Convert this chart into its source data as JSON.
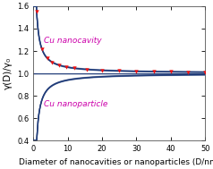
{
  "xlabel": "Diameter of nanocavities or nanoparticles (D/nm)",
  "ylabel": "γ(D)/γ₀",
  "xlim": [
    0,
    50
  ],
  "ylim": [
    0.4,
    1.6
  ],
  "yticks": [
    0.4,
    0.6,
    0.8,
    1.0,
    1.2,
    1.4,
    1.6
  ],
  "xticks": [
    0,
    10,
    20,
    30,
    40,
    50
  ],
  "line_color": "#1e3a78",
  "marker_color": "#ee1111",
  "label_nanocavity": "Cu nanocavity",
  "label_nanoparticle": "Cu nanoparticle",
  "label_color": "#cc00aa",
  "background_color": "#ffffff",
  "nanocavity_marker_x": [
    1.0,
    2.5,
    4.0,
    5.5,
    7.5,
    9.5,
    12.0,
    15.5,
    20.0,
    25.0,
    30.0,
    35.0,
    40.0,
    45.0,
    50.0
  ],
  "a_nanocavity": 0.55,
  "a_nanoparticle": 0.6,
  "font_size_label": 6.5,
  "font_size_tick": 6,
  "font_size_annot": 6.5
}
